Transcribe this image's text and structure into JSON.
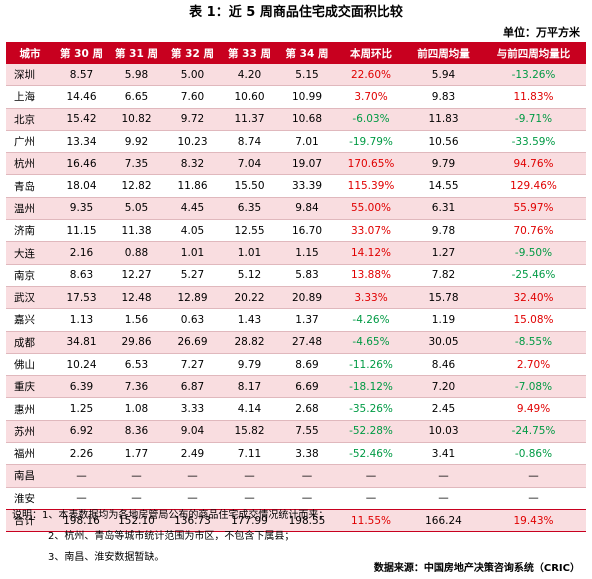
{
  "title": "表 1：近 5 周商品住宅成交面积比较",
  "unit": "单位：万平方米",
  "headers": [
    "城市",
    "第 30 周",
    "第 31 周",
    "第 32 周",
    "第 33 周",
    "第 34 周",
    "本周环比",
    "前四周均量",
    "与前四周均量比"
  ],
  "rows": [
    {
      "city": "深圳",
      "w30": "8.57",
      "w31": "5.98",
      "w32": "5.00",
      "w33": "4.20",
      "w34": "5.15",
      "wow": "22.60%",
      "avg4": "5.94",
      "vs_avg": "-13.26%"
    },
    {
      "city": "上海",
      "w30": "14.46",
      "w31": "6.65",
      "w32": "7.60",
      "w33": "10.60",
      "w34": "10.99",
      "wow": "3.70%",
      "avg4": "9.83",
      "vs_avg": "11.83%"
    },
    {
      "city": "北京",
      "w30": "15.42",
      "w31": "10.82",
      "w32": "9.72",
      "w33": "11.37",
      "w34": "10.68",
      "wow": "-6.03%",
      "avg4": "11.83",
      "vs_avg": "-9.71%"
    },
    {
      "city": "广州",
      "w30": "13.34",
      "w31": "9.92",
      "w32": "10.23",
      "w33": "8.74",
      "w34": "7.01",
      "wow": "-19.79%",
      "avg4": "10.56",
      "vs_avg": "-33.59%"
    },
    {
      "city": "杭州",
      "w30": "16.46",
      "w31": "7.35",
      "w32": "8.32",
      "w33": "7.04",
      "w34": "19.07",
      "wow": "170.65%",
      "avg4": "9.79",
      "vs_avg": "94.76%"
    },
    {
      "city": "青岛",
      "w30": "18.04",
      "w31": "12.82",
      "w32": "11.86",
      "w33": "15.50",
      "w34": "33.39",
      "wow": "115.39%",
      "avg4": "14.55",
      "vs_avg": "129.46%"
    },
    {
      "city": "温州",
      "w30": "9.35",
      "w31": "5.05",
      "w32": "4.45",
      "w33": "6.35",
      "w34": "9.84",
      "wow": "55.00%",
      "avg4": "6.31",
      "vs_avg": "55.97%"
    },
    {
      "city": "济南",
      "w30": "11.15",
      "w31": "11.38",
      "w32": "4.05",
      "w33": "12.55",
      "w34": "16.70",
      "wow": "33.07%",
      "avg4": "9.78",
      "vs_avg": "70.76%"
    },
    {
      "city": "大连",
      "w30": "2.16",
      "w31": "0.88",
      "w32": "1.01",
      "w33": "1.01",
      "w34": "1.15",
      "wow": "14.12%",
      "avg4": "1.27",
      "vs_avg": "-9.50%"
    },
    {
      "city": "南京",
      "w30": "8.63",
      "w31": "12.27",
      "w32": "5.27",
      "w33": "5.12",
      "w34": "5.83",
      "wow": "13.88%",
      "avg4": "7.82",
      "vs_avg": "-25.46%"
    },
    {
      "city": "武汉",
      "w30": "17.53",
      "w31": "12.48",
      "w32": "12.89",
      "w33": "20.22",
      "w34": "20.89",
      "wow": "3.33%",
      "avg4": "15.78",
      "vs_avg": "32.40%"
    },
    {
      "city": "嘉兴",
      "w30": "1.13",
      "w31": "1.56",
      "w32": "0.63",
      "w33": "1.43",
      "w34": "1.37",
      "wow": "-4.26%",
      "avg4": "1.19",
      "vs_avg": "15.08%"
    },
    {
      "city": "成都",
      "w30": "34.81",
      "w31": "29.86",
      "w32": "26.69",
      "w33": "28.82",
      "w34": "27.48",
      "wow": "-4.65%",
      "avg4": "30.05",
      "vs_avg": "-8.55%"
    },
    {
      "city": "佛山",
      "w30": "10.24",
      "w31": "6.53",
      "w32": "7.27",
      "w33": "9.79",
      "w34": "8.69",
      "wow": "-11.26%",
      "avg4": "8.46",
      "vs_avg": "2.70%"
    },
    {
      "city": "重庆",
      "w30": "6.39",
      "w31": "7.36",
      "w32": "6.87",
      "w33": "8.17",
      "w34": "6.69",
      "wow": "-18.12%",
      "avg4": "7.20",
      "vs_avg": "-7.08%"
    },
    {
      "city": "惠州",
      "w30": "1.25",
      "w31": "1.08",
      "w32": "3.33",
      "w33": "4.14",
      "w34": "2.68",
      "wow": "-35.26%",
      "avg4": "2.45",
      "vs_avg": "9.49%"
    },
    {
      "city": "苏州",
      "w30": "6.92",
      "w31": "8.36",
      "w32": "9.04",
      "w33": "15.82",
      "w34": "7.55",
      "wow": "-52.28%",
      "avg4": "10.03",
      "vs_avg": "-24.75%"
    },
    {
      "city": "福州",
      "w30": "2.26",
      "w31": "1.77",
      "w32": "2.49",
      "w33": "7.11",
      "w34": "3.38",
      "wow": "-52.46%",
      "avg4": "3.41",
      "vs_avg": "-0.86%"
    },
    {
      "city": "南昌",
      "w30": "—",
      "w31": "—",
      "w32": "—",
      "w33": "—",
      "w34": "—",
      "wow": "—",
      "avg4": "—",
      "vs_avg": "—"
    },
    {
      "city": "淮安",
      "w30": "—",
      "w31": "—",
      "w32": "—",
      "w33": "—",
      "w34": "—",
      "wow": "—",
      "avg4": "—",
      "vs_avg": "—"
    }
  ],
  "total": {
    "city": "合计",
    "w30": "198.16",
    "w31": "152.10",
    "w32": "136.73",
    "w33": "177.99",
    "w34": "198.55",
    "wow": "11.55%",
    "avg4": "166.24",
    "vs_avg": "19.43%"
  },
  "notes": {
    "label": "说明：",
    "lines": [
      "1、本表数据均为各地房管局公布的商品住宅成交情况统计而来；",
      "2、杭州、青岛等城市统计范围为市区，不包含下属县；",
      "3、南昌、淮安数据暂缺。"
    ]
  },
  "source": "数据来源：中国房地产决策咨询系统（CRIC）",
  "colors": {
    "header_bg": "#c8001f",
    "row_pink": "#f9dde0",
    "positive": "#e00000",
    "negative": "#009a44"
  }
}
